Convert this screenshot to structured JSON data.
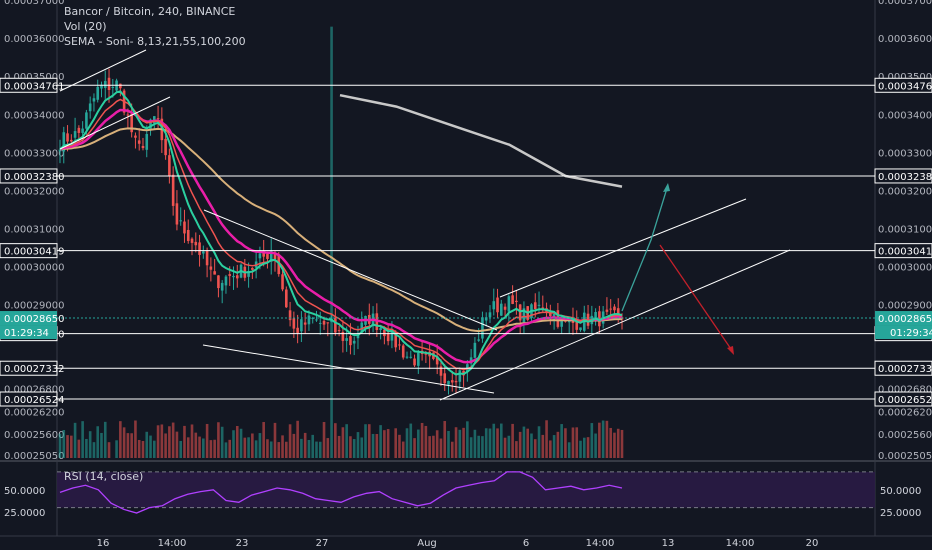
{
  "header": {
    "symbol": "Bancor / Bitcoin, 240, BINANCE",
    "vol_label": "Vol (20)",
    "sema_label": "SEMA - Soni- 8,13,21,55,100,200"
  },
  "rsi": {
    "label": "RSI (14, close)",
    "ticks": [
      {
        "value": 50,
        "label": "50.0000"
      },
      {
        "value": 25,
        "label": "25.0000"
      }
    ],
    "upper_band": 70,
    "lower_band": 30
  },
  "colors": {
    "background": "#131722",
    "up": "#26a69a",
    "down": "#ef5350",
    "ema_fast": "#2bd0a0",
    "ema_mid": "#e91ea8",
    "ema_slow": "#d8b07a",
    "ema_200": "#c8c8c8",
    "rsi_line": "#b040ff",
    "rsi_band": "#2a1b45",
    "arrow_up": "#3aa29a",
    "arrow_down": "#c2202a",
    "level_line": "#ffffff"
  },
  "chart_data": {
    "type": "candlestick",
    "title": "Bancor / Bitcoin, 240, BINANCE",
    "ylim": [
      0.00024975,
      0.00037
    ],
    "price_ticks": [
      "0.00037000",
      "0.00036000",
      "0.00035000",
      "0.00034000",
      "0.00033000",
      "0.00032000",
      "0.00031000",
      "0.00030000",
      "0.00029000",
      "0.00026800",
      "0.00026200",
      "0.00025600",
      "0.00025050"
    ],
    "x_ticks": [
      "16",
      "14:00",
      "23",
      "27",
      "Aug",
      "6",
      "14:00",
      "13",
      "14:00",
      "20"
    ],
    "levels": [
      {
        "price": 0.00034761,
        "label": "0.00034761"
      },
      {
        "price": 0.0003238,
        "label": "0.00032380"
      },
      {
        "price": 0.00030419,
        "label": "0.00030419"
      },
      {
        "price": 0.0002824,
        "label": "0.00028240"
      },
      {
        "price": 0.00027332,
        "label": "0.00027332"
      },
      {
        "price": 0.00026524,
        "label": "0.00026524"
      }
    ],
    "current_price": {
      "price": 0.0002865,
      "label": "0.00028650",
      "countdown": "01:29:34"
    },
    "close_path": [
      [
        0.000333,
        0.000335
      ],
      [
        0.000347,
        0.000348
      ],
      [
        0.00033,
        0.00034
      ],
      [
        0.000312,
        0.000306
      ],
      [
        0.000296,
        0.000298
      ],
      [
        0.0003,
        0.000305
      ],
      [
        0.000283,
        0.000286
      ],
      [
        0.000284,
        0.00028
      ],
      [
        0.000287,
        0.000282
      ],
      [
        0.000276,
        0.000275
      ],
      [
        0.000271,
        0.000273
      ],
      [
        0.000288,
        0.000291
      ],
      [
        0.000287,
        0.00029
      ],
      [
        0.0002845,
        0.000286
      ],
      [
        0.0002865,
        0.0002865
      ]
    ],
    "series": [
      {
        "values": [
          0.000345,
          0.000342,
          0.000337,
          0.000332,
          0.0003238,
          0.000321
        ]
      }
    ],
    "volume_spikes": [
      0.00036,
      0.00024,
      0.00016
    ],
    "rsi_values": [
      47,
      52,
      55,
      50,
      35,
      28,
      24,
      30,
      32,
      40,
      45,
      48,
      50,
      38,
      36,
      44,
      48,
      52,
      50,
      46,
      40,
      38,
      36,
      42,
      46,
      48,
      40,
      36,
      32,
      35,
      44,
      52,
      55,
      58,
      60,
      70,
      70,
      64,
      50,
      52,
      54,
      50,
      52,
      55,
      52
    ]
  }
}
